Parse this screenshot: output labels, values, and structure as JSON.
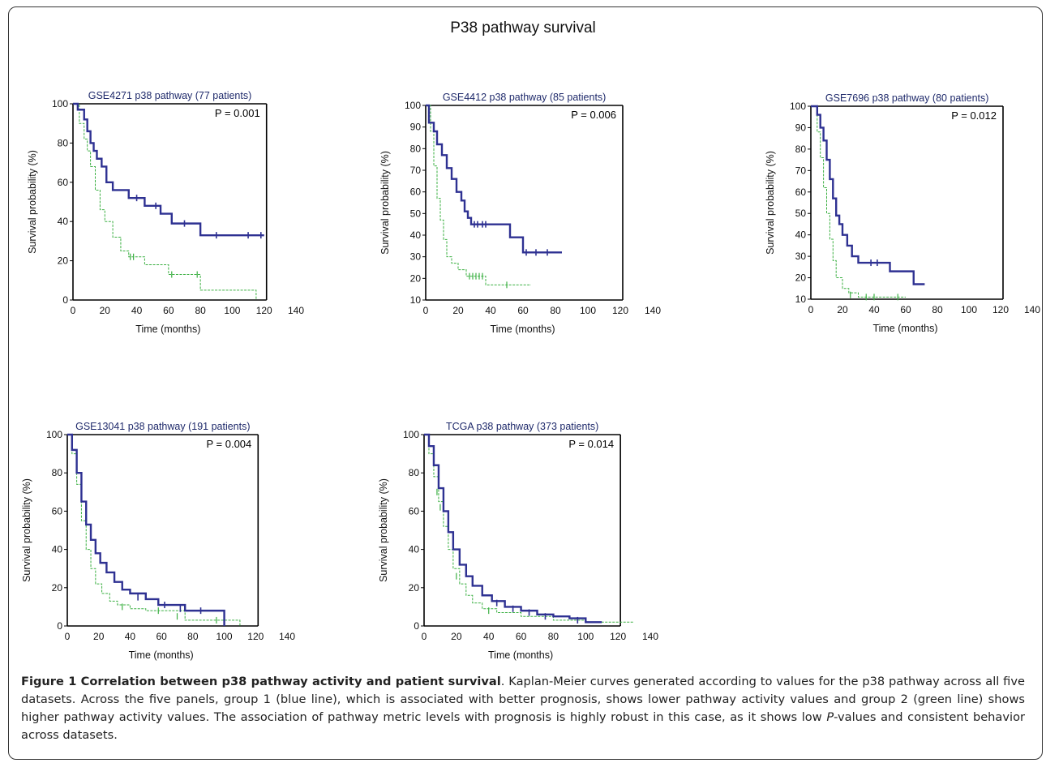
{
  "figure": {
    "main_title": "P38 pathway survival",
    "caption": {
      "bold": "Figure 1 Correlation between p38 pathway activity and patient survival",
      "text1": ". Kaplan-Meier curves generated according to values for the p38 pathway across all five datasets. Across the five panels, group 1 (blue line), which is associated with better prognosis, shows lower pathway activity values and group 2 (green line) shows higher pathway activity values. The association of pathway metric levels with prognosis is highly robust in this case, as it shows low ",
      "italic": "P",
      "text2": "-values and consistent behavior across datasets."
    }
  },
  "colors": {
    "group1": "#2e3192",
    "group2": "#3cb043",
    "title": "#1f2a6b",
    "text": "#111111"
  },
  "chart_data": [
    {
      "type": "line",
      "title": "GSE4271 p38 pathway  (77 patients)",
      "pvalue": "P = 0.001",
      "xlabel": "Time (months)",
      "ylabel": "Survival probability (%)",
      "xlim": [
        0,
        140
      ],
      "ylim": [
        0,
        100
      ],
      "xticks": [
        0,
        20,
        40,
        60,
        80,
        100,
        120,
        140
      ],
      "yticks": [
        0,
        20,
        40,
        60,
        80,
        100
      ],
      "series": [
        {
          "group": 1,
          "x": [
            0,
            3,
            5,
            7,
            9,
            11,
            13,
            15,
            18,
            21,
            25,
            35,
            45,
            55,
            62,
            80,
            100,
            120
          ],
          "y": [
            100,
            97,
            97,
            92,
            86,
            80,
            76,
            72,
            68,
            60,
            56,
            52,
            48,
            44,
            39,
            33,
            33,
            33
          ],
          "censored": [
            [
              40,
              52
            ],
            [
              52,
              48
            ],
            [
              70,
              39
            ],
            [
              90,
              33
            ],
            [
              110,
              33
            ],
            [
              118,
              33
            ]
          ]
        },
        {
          "group": 2,
          "x": [
            0,
            4,
            7,
            9,
            11,
            14,
            17,
            20,
            25,
            30,
            35,
            45,
            60,
            80,
            115
          ],
          "y": [
            100,
            90,
            82,
            76,
            68,
            56,
            46,
            40,
            32,
            25,
            22,
            18,
            13,
            5,
            0
          ],
          "censored": [
            [
              36,
              22
            ],
            [
              38,
              22
            ],
            [
              62,
              13
            ],
            [
              78,
              13
            ]
          ]
        }
      ]
    },
    {
      "type": "line",
      "title": "GSE4412 p38 pathway (85 patients)",
      "pvalue": "P = 0.006",
      "xlabel": "Time (months)",
      "ylabel": "Survival probability (%)",
      "xlim": [
        0,
        140
      ],
      "ylim": [
        10,
        100
      ],
      "xticks": [
        0,
        20,
        40,
        60,
        80,
        100,
        120,
        140
      ],
      "yticks": [
        10,
        20,
        30,
        40,
        50,
        60,
        70,
        80,
        90,
        100
      ],
      "series": [
        {
          "group": 1,
          "x": [
            0,
            2,
            5,
            7,
            10,
            13,
            16,
            19,
            22,
            24,
            26,
            28,
            52,
            60,
            84
          ],
          "y": [
            100,
            92,
            88,
            82,
            77,
            71,
            66,
            60,
            56,
            51,
            48,
            45,
            39,
            32,
            32
          ],
          "censored": [
            [
              30,
              45
            ],
            [
              32,
              45
            ],
            [
              35,
              45
            ],
            [
              37,
              45
            ],
            [
              62,
              32
            ],
            [
              68,
              32
            ],
            [
              75,
              32
            ]
          ]
        },
        {
          "group": 2,
          "x": [
            0,
            3,
            5,
            7,
            9,
            11,
            13,
            16,
            20,
            25,
            37,
            65
          ],
          "y": [
            100,
            88,
            72,
            57,
            47,
            38,
            30,
            27,
            24,
            21,
            17,
            17
          ],
          "censored": [
            [
              27,
              21
            ],
            [
              29,
              21
            ],
            [
              31,
              21
            ],
            [
              33,
              21
            ],
            [
              35,
              21
            ],
            [
              50,
              17
            ]
          ]
        }
      ]
    },
    {
      "type": "line",
      "title": "GSE7696 p38 pathway (80 patients)",
      "pvalue": "P = 0.012",
      "xlabel": "Time (months)",
      "ylabel": "Survival probability (%)",
      "xlim": [
        0,
        140
      ],
      "ylim": [
        10,
        100
      ],
      "xticks": [
        0,
        20,
        40,
        60,
        80,
        100,
        120,
        140
      ],
      "yticks": [
        10,
        20,
        30,
        40,
        50,
        60,
        70,
        80,
        90,
        100
      ],
      "series": [
        {
          "group": 1,
          "x": [
            0,
            4,
            6,
            8,
            10,
            12,
            14,
            16,
            18,
            20,
            23,
            26,
            30,
            35,
            50,
            65,
            72
          ],
          "y": [
            100,
            96,
            90,
            84,
            75,
            66,
            57,
            49,
            45,
            40,
            35,
            30,
            27,
            27,
            23,
            17,
            17
          ],
          "censored": [
            [
              38,
              27
            ],
            [
              42,
              27
            ]
          ]
        },
        {
          "group": 2,
          "x": [
            0,
            4,
            6,
            8,
            10,
            12,
            14,
            16,
            20,
            24,
            30,
            60
          ],
          "y": [
            100,
            88,
            76,
            62,
            50,
            38,
            28,
            20,
            15,
            13,
            11,
            11
          ],
          "censored": [
            [
              25,
              12
            ],
            [
              35,
              11
            ],
            [
              40,
              11
            ],
            [
              55,
              11
            ]
          ]
        }
      ]
    },
    {
      "type": "line",
      "title": "GSE13041 p38 pathway  (191 patients)",
      "pvalue": "P = 0.004",
      "xlabel": "Time (months)",
      "ylabel": "Survival probability (%)",
      "xlim": [
        0,
        140
      ],
      "ylim": [
        0,
        100
      ],
      "xticks": [
        0,
        20,
        40,
        60,
        80,
        100,
        120,
        140
      ],
      "yticks": [
        0,
        20,
        40,
        60,
        80,
        100
      ],
      "series": [
        {
          "group": 1,
          "x": [
            0,
            3,
            6,
            9,
            12,
            15,
            18,
            21,
            25,
            30,
            35,
            40,
            50,
            58,
            75,
            100
          ],
          "y": [
            100,
            92,
            80,
            65,
            53,
            45,
            38,
            33,
            28,
            23,
            19,
            17,
            14,
            11,
            8,
            0
          ],
          "censored": [
            [
              45,
              15
            ],
            [
              62,
              11
            ],
            [
              72,
              9
            ],
            [
              85,
              8
            ]
          ]
        },
        {
          "group": 2,
          "x": [
            0,
            3,
            6,
            9,
            12,
            15,
            18,
            22,
            27,
            32,
            40,
            50,
            75,
            110
          ],
          "y": [
            100,
            90,
            74,
            55,
            40,
            30,
            22,
            17,
            13,
            11,
            9,
            8,
            3,
            0
          ],
          "censored": [
            [
              35,
              10
            ],
            [
              58,
              8
            ],
            [
              70,
              5
            ],
            [
              95,
              3
            ]
          ]
        }
      ]
    },
    {
      "type": "line",
      "title": "TCGA  p38 pathway (373 patients)",
      "pvalue": "P = 0.014",
      "xlabel": "Time (months)",
      "ylabel": "Survival probability (%)",
      "xlim": [
        0,
        140
      ],
      "ylim": [
        0,
        100
      ],
      "xticks": [
        0,
        20,
        40,
        60,
        80,
        100,
        120,
        140
      ],
      "yticks": [
        0,
        20,
        40,
        60,
        80,
        100
      ],
      "series": [
        {
          "group": 1,
          "x": [
            0,
            3,
            6,
            9,
            12,
            15,
            18,
            22,
            26,
            30,
            36,
            42,
            50,
            60,
            70,
            80,
            90,
            100,
            110
          ],
          "y": [
            100,
            94,
            84,
            72,
            60,
            49,
            40,
            32,
            26,
            21,
            16,
            13,
            10,
            8,
            6,
            5,
            4,
            2,
            2
          ],
          "censored": [
            [
              45,
              12
            ],
            [
              55,
              9
            ],
            [
              65,
              7
            ],
            [
              75,
              5
            ],
            [
              95,
              3
            ]
          ]
        },
        {
          "group": 2,
          "x": [
            0,
            3,
            6,
            9,
            12,
            15,
            18,
            22,
            26,
            30,
            36,
            45,
            60,
            80,
            100,
            130
          ],
          "y": [
            100,
            90,
            78,
            65,
            52,
            40,
            30,
            22,
            16,
            12,
            9,
            7,
            5,
            3,
            2,
            2
          ],
          "censored": [
            [
              8,
              70
            ],
            [
              10,
              62
            ],
            [
              20,
              26
            ],
            [
              40,
              8
            ]
          ]
        }
      ]
    }
  ]
}
